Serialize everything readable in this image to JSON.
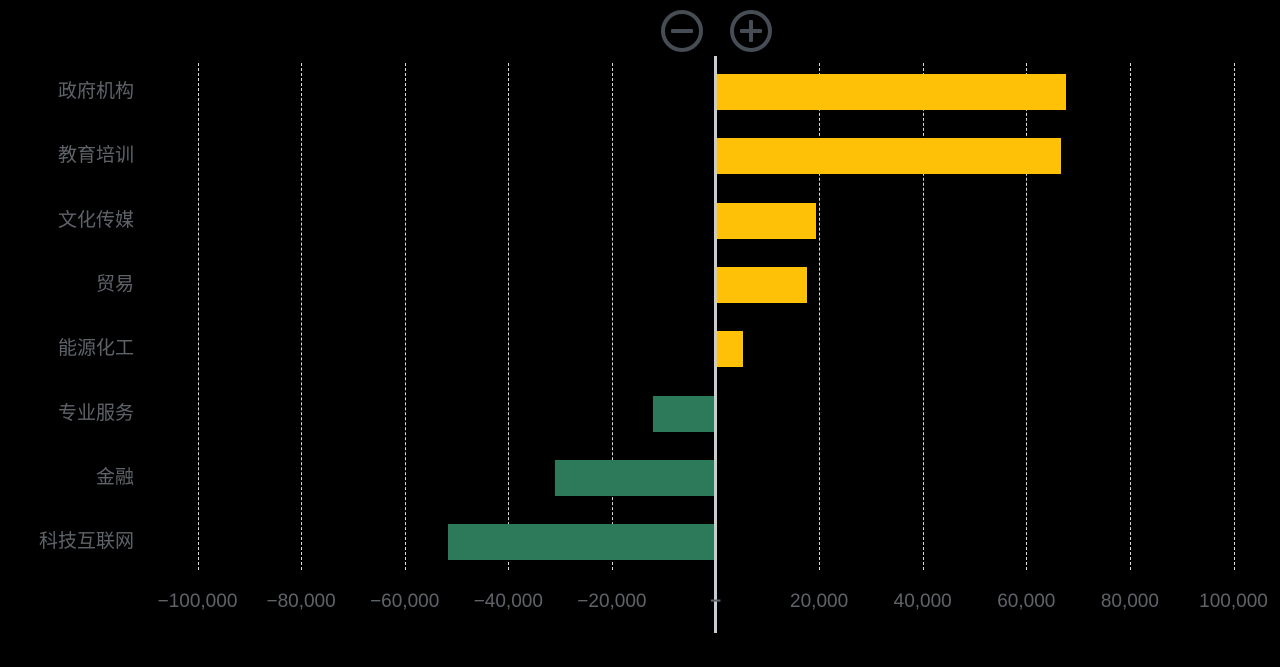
{
  "controls": {
    "zoom_out_icon": "minus-in-circle",
    "zoom_in_icon": "plus-in-circle",
    "stroke_color": "#474D55"
  },
  "colors": {
    "background": "#000000",
    "positive_bar": "#FFC107",
    "negative_bar": "#2D7A5B",
    "gridline": "#D9D9D9",
    "zero_axis": "#C9CCCE",
    "axis_text": "#5F6368"
  },
  "chart_data": {
    "type": "bar",
    "orientation": "horizontal",
    "title": "",
    "xlabel": "",
    "ylabel": "",
    "grid": "vertical-dashed",
    "legend": "none",
    "categories": [
      "政府机构",
      "教育培训",
      "文化传媒",
      "贸易",
      "能源化工",
      "专业服务",
      "金融",
      "科技互联网"
    ],
    "values": [
      67300,
      66500,
      19100,
      17400,
      5100,
      -11800,
      -30700,
      -51300
    ],
    "bar_color_positive": "#FFC107",
    "bar_color_negative": "#2D7A5B",
    "xlim": [
      -109000,
      109000
    ],
    "x_ticks": [
      -100000,
      -80000,
      -60000,
      -40000,
      -20000,
      0,
      20000,
      40000,
      60000,
      80000,
      100000
    ],
    "x_tick_labels": [
      "−100,000",
      "−80,000",
      "−60,000",
      "−40,000",
      "−20,000",
      "−",
      "20,000",
      "40,000",
      "60,000",
      "80,000",
      "100,000"
    ]
  }
}
